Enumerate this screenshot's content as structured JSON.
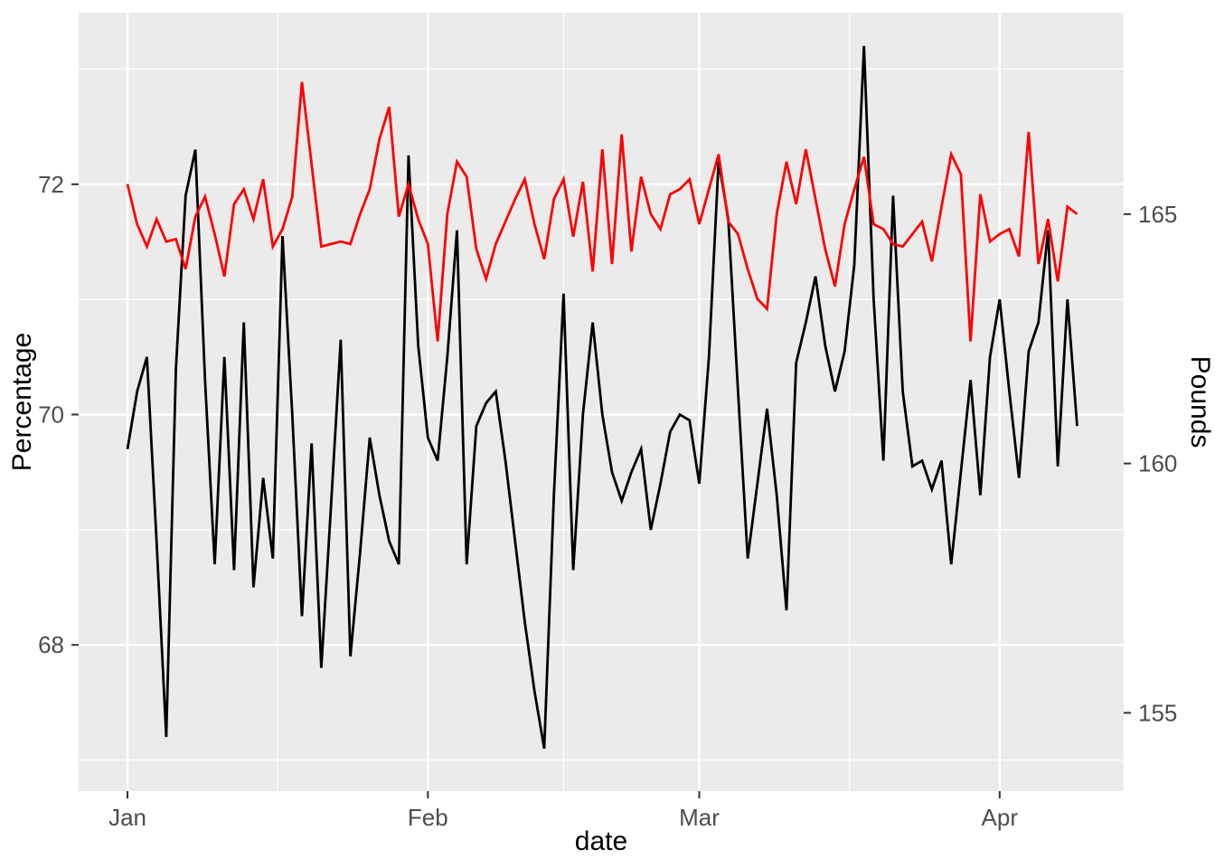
{
  "chart_data": {
    "type": "line",
    "title": "",
    "xlabel": "date",
    "ylabel_left": "Percentage",
    "ylabel_right": "Pounds",
    "background_panel_color": "#EBEBEB",
    "grid_color": "#FFFFFF",
    "grid": "on",
    "legend": "none",
    "x_unit": "day index from Jan 1, one point per day",
    "x_domain_days": [
      -5.04,
      102.8
    ],
    "x_ticks": [
      {
        "label": "Jan",
        "day": 0
      },
      {
        "label": "Feb",
        "day": 31
      },
      {
        "label": "Mar",
        "day": 59
      },
      {
        "label": "Apr",
        "day": 90
      }
    ],
    "x_minor_days": [
      15.5,
      45,
      74.5
    ],
    "left_axis": {
      "ticks": [
        68,
        70,
        72
      ],
      "minor": [
        67,
        69,
        71,
        73
      ],
      "range": [
        66.73,
        73.49
      ]
    },
    "right_axis": {
      "ticks": [
        155,
        160,
        165
      ],
      "range": [
        153.43,
        169.04
      ]
    },
    "series": [
      {
        "name": "Percentage",
        "color": "#000000",
        "axis": "left",
        "values": [
          69.7,
          70.2,
          70.5,
          68.9,
          67.2,
          70.4,
          71.9,
          72.3,
          70.3,
          68.7,
          70.5,
          68.65,
          70.8,
          68.5,
          69.45,
          68.75,
          71.55,
          70.0,
          68.25,
          69.75,
          67.8,
          69.2,
          70.65,
          67.9,
          68.8,
          69.8,
          69.3,
          68.9,
          68.7,
          72.25,
          70.6,
          69.8,
          69.6,
          70.5,
          71.6,
          68.7,
          69.9,
          70.1,
          70.2,
          69.6,
          68.9,
          68.2,
          67.6,
          67.1,
          69.3,
          71.05,
          68.65,
          70.0,
          70.8,
          70.0,
          69.5,
          69.25,
          69.5,
          69.7,
          69.0,
          69.4,
          69.85,
          70.0,
          69.95,
          69.4,
          70.5,
          72.2,
          71.7,
          70.2,
          68.75,
          69.4,
          70.05,
          69.3,
          68.3,
          70.45,
          70.8,
          71.2,
          70.6,
          70.2,
          70.55,
          71.3,
          73.2,
          71.0,
          69.6,
          71.9,
          70.2,
          69.55,
          69.6,
          69.35,
          69.6,
          68.7,
          69.5,
          70.3,
          69.3,
          70.5,
          71.0,
          70.2,
          69.45,
          70.55,
          70.8,
          71.6,
          69.55,
          71.0,
          69.9
        ]
      },
      {
        "name": "Pounds",
        "color": "#FF0000",
        "axis": "right",
        "values": [
          165.6,
          164.8,
          164.35,
          164.9,
          164.45,
          164.5,
          163.9,
          164.95,
          165.35,
          164.6,
          163.75,
          165.2,
          165.5,
          164.9,
          165.7,
          164.35,
          164.7,
          165.35,
          167.65,
          166.0,
          164.35,
          164.4,
          164.45,
          164.4,
          165.0,
          165.5,
          166.5,
          167.15,
          164.95,
          165.6,
          164.9,
          164.4,
          162.45,
          165.0,
          166.05,
          165.75,
          164.3,
          163.7,
          164.4,
          164.85,
          165.3,
          165.7,
          164.8,
          164.1,
          165.3,
          165.7,
          164.55,
          165.65,
          163.85,
          166.3,
          164.0,
          166.6,
          164.25,
          165.75,
          165.0,
          164.7,
          165.4,
          165.5,
          165.7,
          164.8,
          165.5,
          166.2,
          164.85,
          164.6,
          163.9,
          163.3,
          163.1,
          165.0,
          166.05,
          165.2,
          166.3,
          165.3,
          164.3,
          163.55,
          164.8,
          165.5,
          166.15,
          164.8,
          164.7,
          164.4,
          164.35,
          164.6,
          164.85,
          164.05,
          165.15,
          166.2,
          165.8,
          162.45,
          165.4,
          164.45,
          164.6,
          164.7,
          164.15,
          166.65,
          164.0,
          164.9,
          163.65,
          165.15,
          165.0
        ]
      }
    ]
  }
}
